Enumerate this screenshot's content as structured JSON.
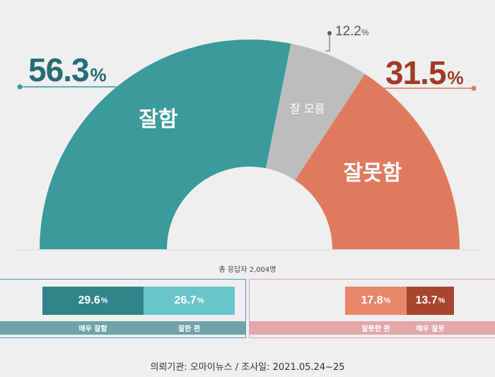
{
  "chart_data": {
    "type": "pie",
    "shape": "half-donut",
    "total": "총 응답자 2,004명",
    "slices": [
      {
        "label": "잘함",
        "value": 56.3,
        "color": "#3a9a9c"
      },
      {
        "label": "잘 모름",
        "value": 12.2,
        "color": "#bdbdbd"
      },
      {
        "label": "잘못함",
        "value": 31.5,
        "color": "#e07a5f"
      }
    ],
    "big_values": {
      "good": {
        "num": "56.3",
        "unit": "%",
        "color": "#266d74"
      },
      "unsure": {
        "num": "12.2",
        "unit": "%"
      },
      "bad": {
        "num": "31.5",
        "unit": "%",
        "color": "#9f3b26"
      }
    },
    "breakdown": {
      "positive": [
        {
          "num": "29.6",
          "unit": "%",
          "label": "매우 잘함",
          "value": 29.6,
          "color": "#2f858a"
        },
        {
          "num": "26.7",
          "unit": "%",
          "label": "잘한 편",
          "value": 26.7,
          "color": "#69c4cc"
        }
      ],
      "negative": [
        {
          "num": "17.8",
          "unit": "%",
          "label": "잘못한 편",
          "value": 17.8,
          "color": "#e9876b"
        },
        {
          "num": "13.7",
          "unit": "%",
          "label": "매우 잘못",
          "value": 13.7,
          "color": "#a8452e"
        }
      ]
    }
  },
  "footer": "의뢰기관: 오마이뉴스  /  조사일: 2021.05.24~25",
  "colors": {
    "positive_border": "#4d9aa2",
    "negative_border": "#e1a1a4",
    "positive_strip": "#6da3a9",
    "negative_strip": "#e2a6ab"
  }
}
